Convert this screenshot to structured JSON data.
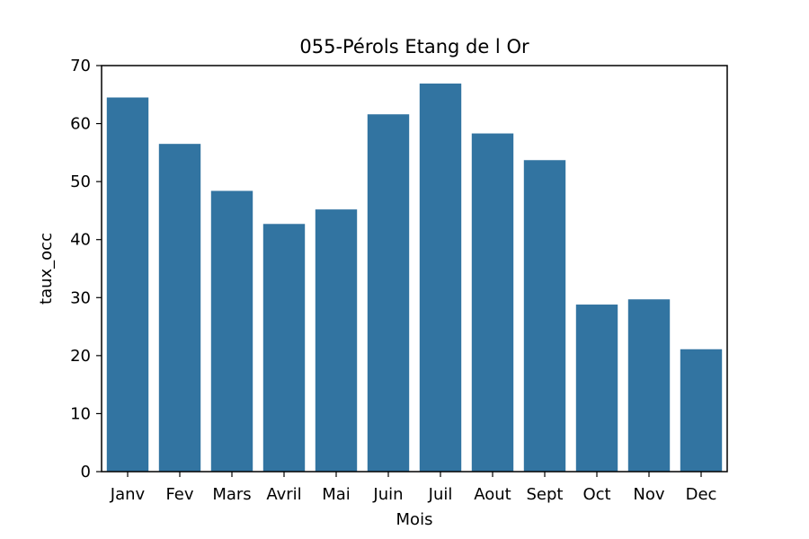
{
  "chart_data": {
    "type": "bar",
    "title": "055-Pérols Etang de l Or",
    "xlabel": "Mois",
    "ylabel": "taux_occ",
    "categories": [
      "Janv",
      "Fev",
      "Mars",
      "Avril",
      "Mai",
      "Juin",
      "Juil",
      "Aout",
      "Sept",
      "Oct",
      "Nov",
      "Dec"
    ],
    "values": [
      64.5,
      56.5,
      48.4,
      42.7,
      45.2,
      61.6,
      66.9,
      58.3,
      53.7,
      28.8,
      29.7,
      21.1
    ],
    "ylim": [
      0,
      70
    ],
    "yticks": [
      0,
      10,
      20,
      30,
      40,
      50,
      60,
      70
    ],
    "bar_color": "#3274a1",
    "grid": false,
    "legend": "none"
  }
}
